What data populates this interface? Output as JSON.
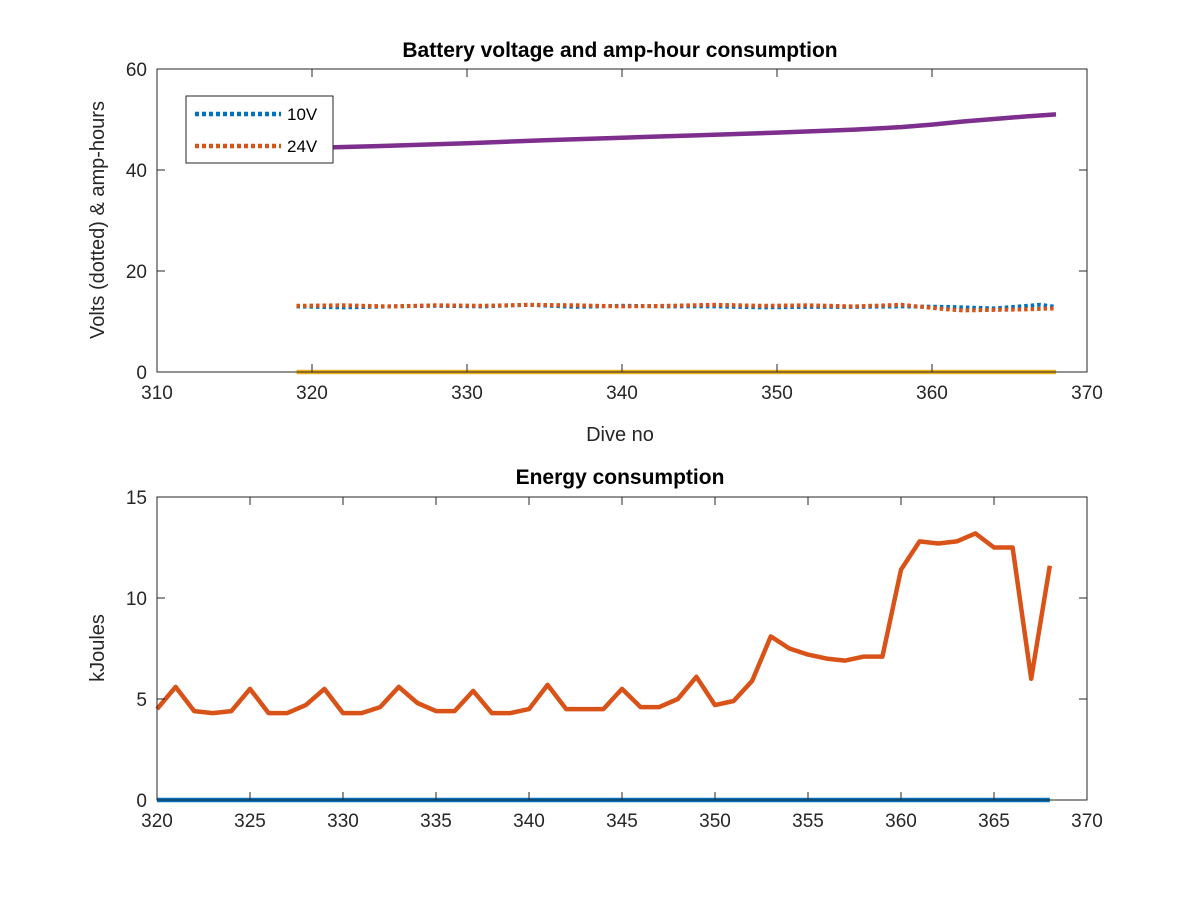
{
  "chart_data": [
    {
      "type": "line",
      "title": "Battery voltage and amp-hour consumption",
      "xlabel": "Dive no",
      "ylabel": "Volts (dotted) & amp-hours",
      "xlim": [
        310,
        370
      ],
      "ylim": [
        0,
        60
      ],
      "xticks": [
        310,
        320,
        330,
        340,
        350,
        360,
        370
      ],
      "yticks": [
        0,
        20,
        40,
        60
      ],
      "grid": false,
      "legend_position": "top-left",
      "series": [
        {
          "name": "10V",
          "color": "#0072BD",
          "style": "dotted",
          "x": [
            319,
            322,
            325,
            328,
            331,
            334,
            337,
            340,
            343,
            346,
            349,
            352,
            355,
            358,
            361,
            364,
            367,
            368
          ],
          "y": [
            13.0,
            12.8,
            13.0,
            13.1,
            13.0,
            13.3,
            12.9,
            13.1,
            13.0,
            13.0,
            12.8,
            12.9,
            12.9,
            13.0,
            12.9,
            12.6,
            13.3,
            12.9
          ]
        },
        {
          "name": "24V",
          "color": "#D95319",
          "style": "dotted",
          "x": [
            319,
            322,
            325,
            328,
            331,
            334,
            337,
            340,
            343,
            346,
            349,
            352,
            355,
            358,
            361,
            362,
            364,
            366,
            368
          ],
          "y": [
            13.1,
            13.2,
            13.0,
            13.2,
            13.1,
            13.3,
            13.2,
            13.0,
            13.1,
            13.3,
            13.1,
            13.2,
            13.0,
            13.3,
            12.4,
            12.2,
            12.3,
            12.4,
            12.6
          ]
        },
        {
          "color": "#EDB120",
          "style": "solid",
          "x": [
            319,
            368
          ],
          "y": [
            0,
            0
          ]
        },
        {
          "color": "#7E2F8E",
          "style": "solid",
          "x": [
            319,
            325,
            330,
            335,
            340,
            345,
            350,
            355,
            358,
            360,
            362,
            364,
            366,
            368
          ],
          "y": [
            44.3,
            44.8,
            45.3,
            45.9,
            46.4,
            46.9,
            47.4,
            48.0,
            48.5,
            49.0,
            49.6,
            50.1,
            50.6,
            51.0
          ]
        }
      ]
    },
    {
      "type": "line",
      "title": "Energy consumption",
      "xlabel": "",
      "ylabel": "kJoules",
      "xlim": [
        320,
        370
      ],
      "ylim": [
        0,
        15
      ],
      "xticks": [
        320,
        325,
        330,
        335,
        340,
        345,
        350,
        355,
        360,
        365,
        370
      ],
      "yticks": [
        0,
        5,
        10,
        15
      ],
      "grid": false,
      "series": [
        {
          "color": "#0072BD",
          "style": "solid",
          "x": [
            320,
            368
          ],
          "y": [
            0,
            0
          ]
        },
        {
          "color": "#D95319",
          "style": "solid",
          "x": [
            320,
            321,
            322,
            323,
            324,
            325,
            326,
            327,
            328,
            329,
            330,
            331,
            332,
            333,
            334,
            335,
            336,
            337,
            338,
            339,
            340,
            341,
            342,
            343,
            344,
            345,
            346,
            347,
            348,
            349,
            350,
            351,
            352,
            353,
            354,
            355,
            356,
            357,
            358,
            359,
            360,
            361,
            362,
            363,
            364,
            365,
            366,
            367,
            368
          ],
          "y": [
            4.5,
            5.6,
            4.4,
            4.3,
            4.4,
            5.5,
            4.3,
            4.3,
            4.7,
            5.5,
            4.3,
            4.3,
            4.6,
            5.6,
            4.8,
            4.4,
            4.4,
            5.4,
            4.3,
            4.3,
            4.5,
            5.7,
            4.5,
            4.5,
            4.5,
            5.5,
            4.6,
            4.6,
            5.0,
            6.1,
            4.7,
            4.9,
            5.9,
            8.1,
            7.5,
            7.2,
            7.0,
            6.9,
            7.1,
            7.1,
            11.4,
            12.8,
            12.7,
            12.8,
            13.2,
            12.5,
            12.5,
            6.0,
            11.6
          ]
        }
      ]
    }
  ]
}
